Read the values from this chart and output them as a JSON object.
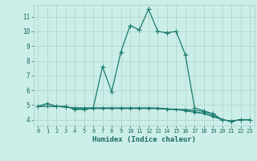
{
  "xlabel": "Humidex (Indice chaleur)",
  "background_color": "#cceee8",
  "grid_color": "#aad4cc",
  "line_color": "#1a7a6e",
  "x_data": [
    0,
    1,
    2,
    3,
    4,
    5,
    6,
    7,
    8,
    9,
    10,
    11,
    12,
    13,
    14,
    15,
    16,
    17,
    18,
    19,
    20,
    21,
    22,
    23
  ],
  "y_main": [
    4.9,
    5.1,
    4.9,
    4.9,
    4.7,
    4.7,
    4.8,
    7.6,
    5.9,
    8.6,
    10.4,
    10.1,
    11.5,
    10.0,
    9.9,
    10.0,
    8.4,
    4.8,
    4.6,
    4.4,
    4.0,
    3.9,
    4.0,
    4.0
  ],
  "y_flat1": [
    4.9,
    5.1,
    4.9,
    4.9,
    4.75,
    4.75,
    4.75,
    4.75,
    4.75,
    4.75,
    4.75,
    4.75,
    4.75,
    4.75,
    4.7,
    4.7,
    4.7,
    4.65,
    4.55,
    4.35,
    4.0,
    3.9,
    4.0,
    4.0
  ],
  "y_flat2": [
    4.9,
    4.9,
    4.9,
    4.85,
    4.8,
    4.8,
    4.8,
    4.8,
    4.8,
    4.8,
    4.8,
    4.8,
    4.8,
    4.8,
    4.75,
    4.72,
    4.65,
    4.55,
    4.45,
    4.25,
    4.0,
    3.9,
    4.0,
    4.0
  ],
  "y_flat3": [
    4.9,
    4.9,
    4.9,
    4.85,
    4.8,
    4.8,
    4.8,
    4.8,
    4.8,
    4.8,
    4.8,
    4.8,
    4.8,
    4.78,
    4.72,
    4.68,
    4.6,
    4.5,
    4.4,
    4.2,
    4.0,
    3.9,
    4.0,
    4.0
  ],
  "ylim": [
    3.6,
    11.8
  ],
  "xlim": [
    -0.5,
    23.5
  ],
  "yticks": [
    4,
    5,
    6,
    7,
    8,
    9,
    10,
    11
  ],
  "xticks": [
    0,
    1,
    2,
    3,
    4,
    5,
    6,
    7,
    8,
    9,
    10,
    11,
    12,
    13,
    14,
    15,
    16,
    17,
    18,
    19,
    20,
    21,
    22,
    23
  ],
  "xtick_labels": [
    "0",
    "1",
    "2",
    "3",
    "4",
    "5",
    "6",
    "7",
    "8",
    "9",
    "10",
    "11",
    "12",
    "13",
    "14",
    "15",
    "16",
    "17",
    "18",
    "19",
    "20",
    "21",
    "22",
    "23"
  ],
  "font_color": "#1a6a60",
  "markersize": 2.5
}
